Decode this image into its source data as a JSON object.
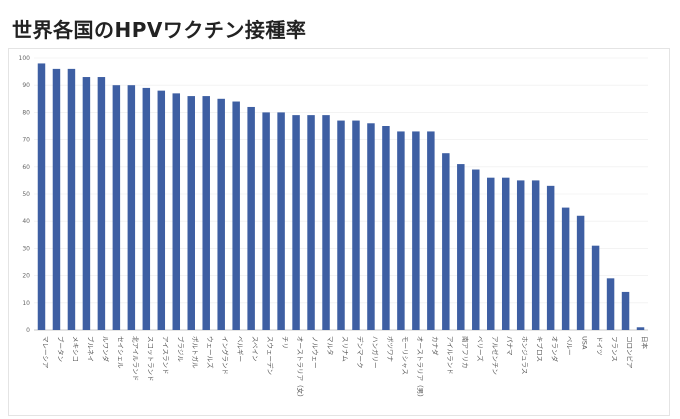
{
  "title": "世界各国のHPVワクチン接種率",
  "chart_data": {
    "type": "bar",
    "title": "世界各国のHPVワクチン接種率",
    "xlabel": "",
    "ylabel": "",
    "ylim": [
      0,
      100
    ],
    "yticks": [
      0,
      10,
      20,
      30,
      40,
      50,
      60,
      70,
      80,
      90,
      100
    ],
    "grid": true,
    "bar_color": "#3e5fa3",
    "categories": [
      "マレーシア",
      "ブータン",
      "メキシコ",
      "ブルネイ",
      "ルワンダ",
      "セイシェル",
      "北アイルランド",
      "スコットランド",
      "アイスランド",
      "ブラジル",
      "ポルトガル",
      "ウェールズ",
      "イングランド",
      "ベルギー",
      "スペイン",
      "スウェーデン",
      "チリ",
      "オーストラリア（女）",
      "ノルウェー",
      "マルタ",
      "スリナム",
      "デンマーク",
      "ハンガリー",
      "ボツワナ",
      "モーリシャス",
      "オーストラリア（男）",
      "カナダ",
      "アイルランド",
      "南アフリカ",
      "ベリーズ",
      "アルゼンチン",
      "パナマ",
      "ホンジュラス",
      "キプロス",
      "オランダ",
      "ペルー",
      "USA",
      "ドイツ",
      "フランス",
      "コロンビア",
      "日本"
    ],
    "values": [
      98,
      96,
      96,
      93,
      93,
      90,
      90,
      89,
      88,
      87,
      86,
      86,
      85,
      84,
      82,
      80,
      80,
      79,
      79,
      79,
      77,
      77,
      76,
      75,
      73,
      73,
      73,
      65,
      61,
      59,
      56,
      56,
      55,
      55,
      53,
      45,
      42,
      31,
      19,
      14,
      1
    ]
  }
}
